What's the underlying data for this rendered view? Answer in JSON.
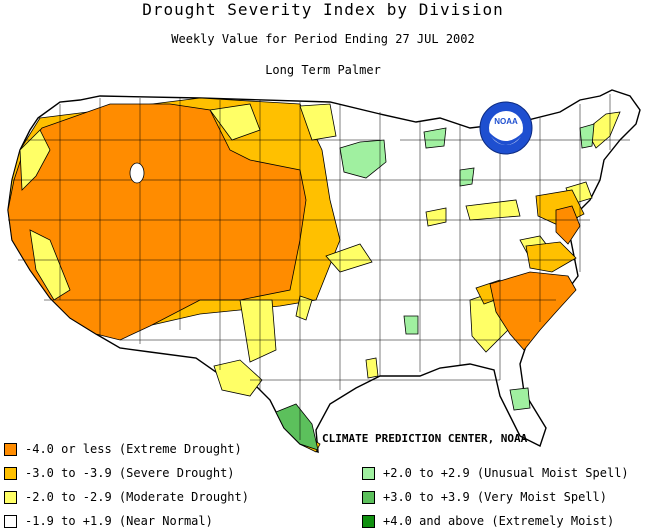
{
  "header": {
    "title": "Drought Severity Index by Division",
    "subtitle": "Weekly Value for Period Ending 27 JUL 2002",
    "index_name": "Long Term Palmer"
  },
  "logo": {
    "text": "NOAA"
  },
  "credit": "CLIMATE PREDICTION CENTER, NOAA",
  "legend": {
    "left": [
      {
        "label": "-4.0 or less (Extreme Drought)",
        "color": "#ff8c00"
      },
      {
        "label": "-3.0 to -3.9 (Severe Drought)",
        "color": "#ffc000"
      },
      {
        "label": "-2.0 to -2.9 (Moderate Drought)",
        "color": "#ffff66"
      },
      {
        "label": "-1.9 to +1.9 (Near Normal)",
        "color": "#ffffff"
      }
    ],
    "right": [
      {
        "label": "+2.0 to +2.9 (Unusual Moist Spell)",
        "color": "#a0f0a0"
      },
      {
        "label": "+3.0 to +3.9 (Very Moist Spell)",
        "color": "#5cc05c"
      },
      {
        "label": "+4.0 and above (Extremely Moist)",
        "color": "#109010"
      }
    ]
  },
  "colors": {
    "extreme_drought": "#ff8c00",
    "severe_drought": "#ffc000",
    "moderate_drought": "#ffff66",
    "near_normal": "#ffffff",
    "unusual_moist": "#a0f0a0",
    "very_moist": "#5cc05c",
    "extremely_moist": "#109010",
    "state_lines": "#000000",
    "logo_blue": "#1e4fd0"
  }
}
